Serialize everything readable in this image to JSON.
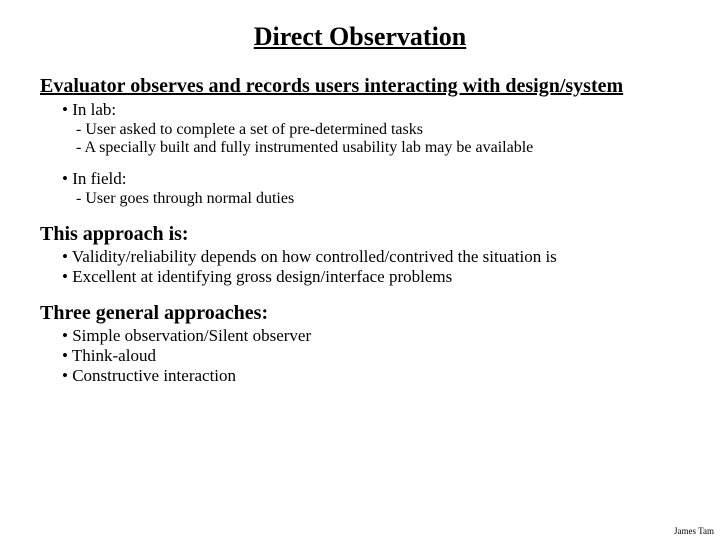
{
  "title": "Direct Observation",
  "intro": "Evaluator observes and records users interacting with design/system",
  "lab_label": "In lab:",
  "lab_items": {
    "a": "User asked to complete a set of pre-determined tasks",
    "b": "A specially built and fully instrumented usability lab may be available"
  },
  "field_label": "In field:",
  "field_items": {
    "a": "User goes through normal duties"
  },
  "approach_heading": "This approach is:",
  "approach_items": {
    "a": "Validity/reliability depends on how controlled/contrived the situation is",
    "b": "Excellent at identifying gross design/interface problems"
  },
  "three_heading": "Three general approaches:",
  "three_items": {
    "a": "Simple observation/Silent observer",
    "b": "Think-aloud",
    "c": "Constructive interaction"
  },
  "footer": "James Tam"
}
